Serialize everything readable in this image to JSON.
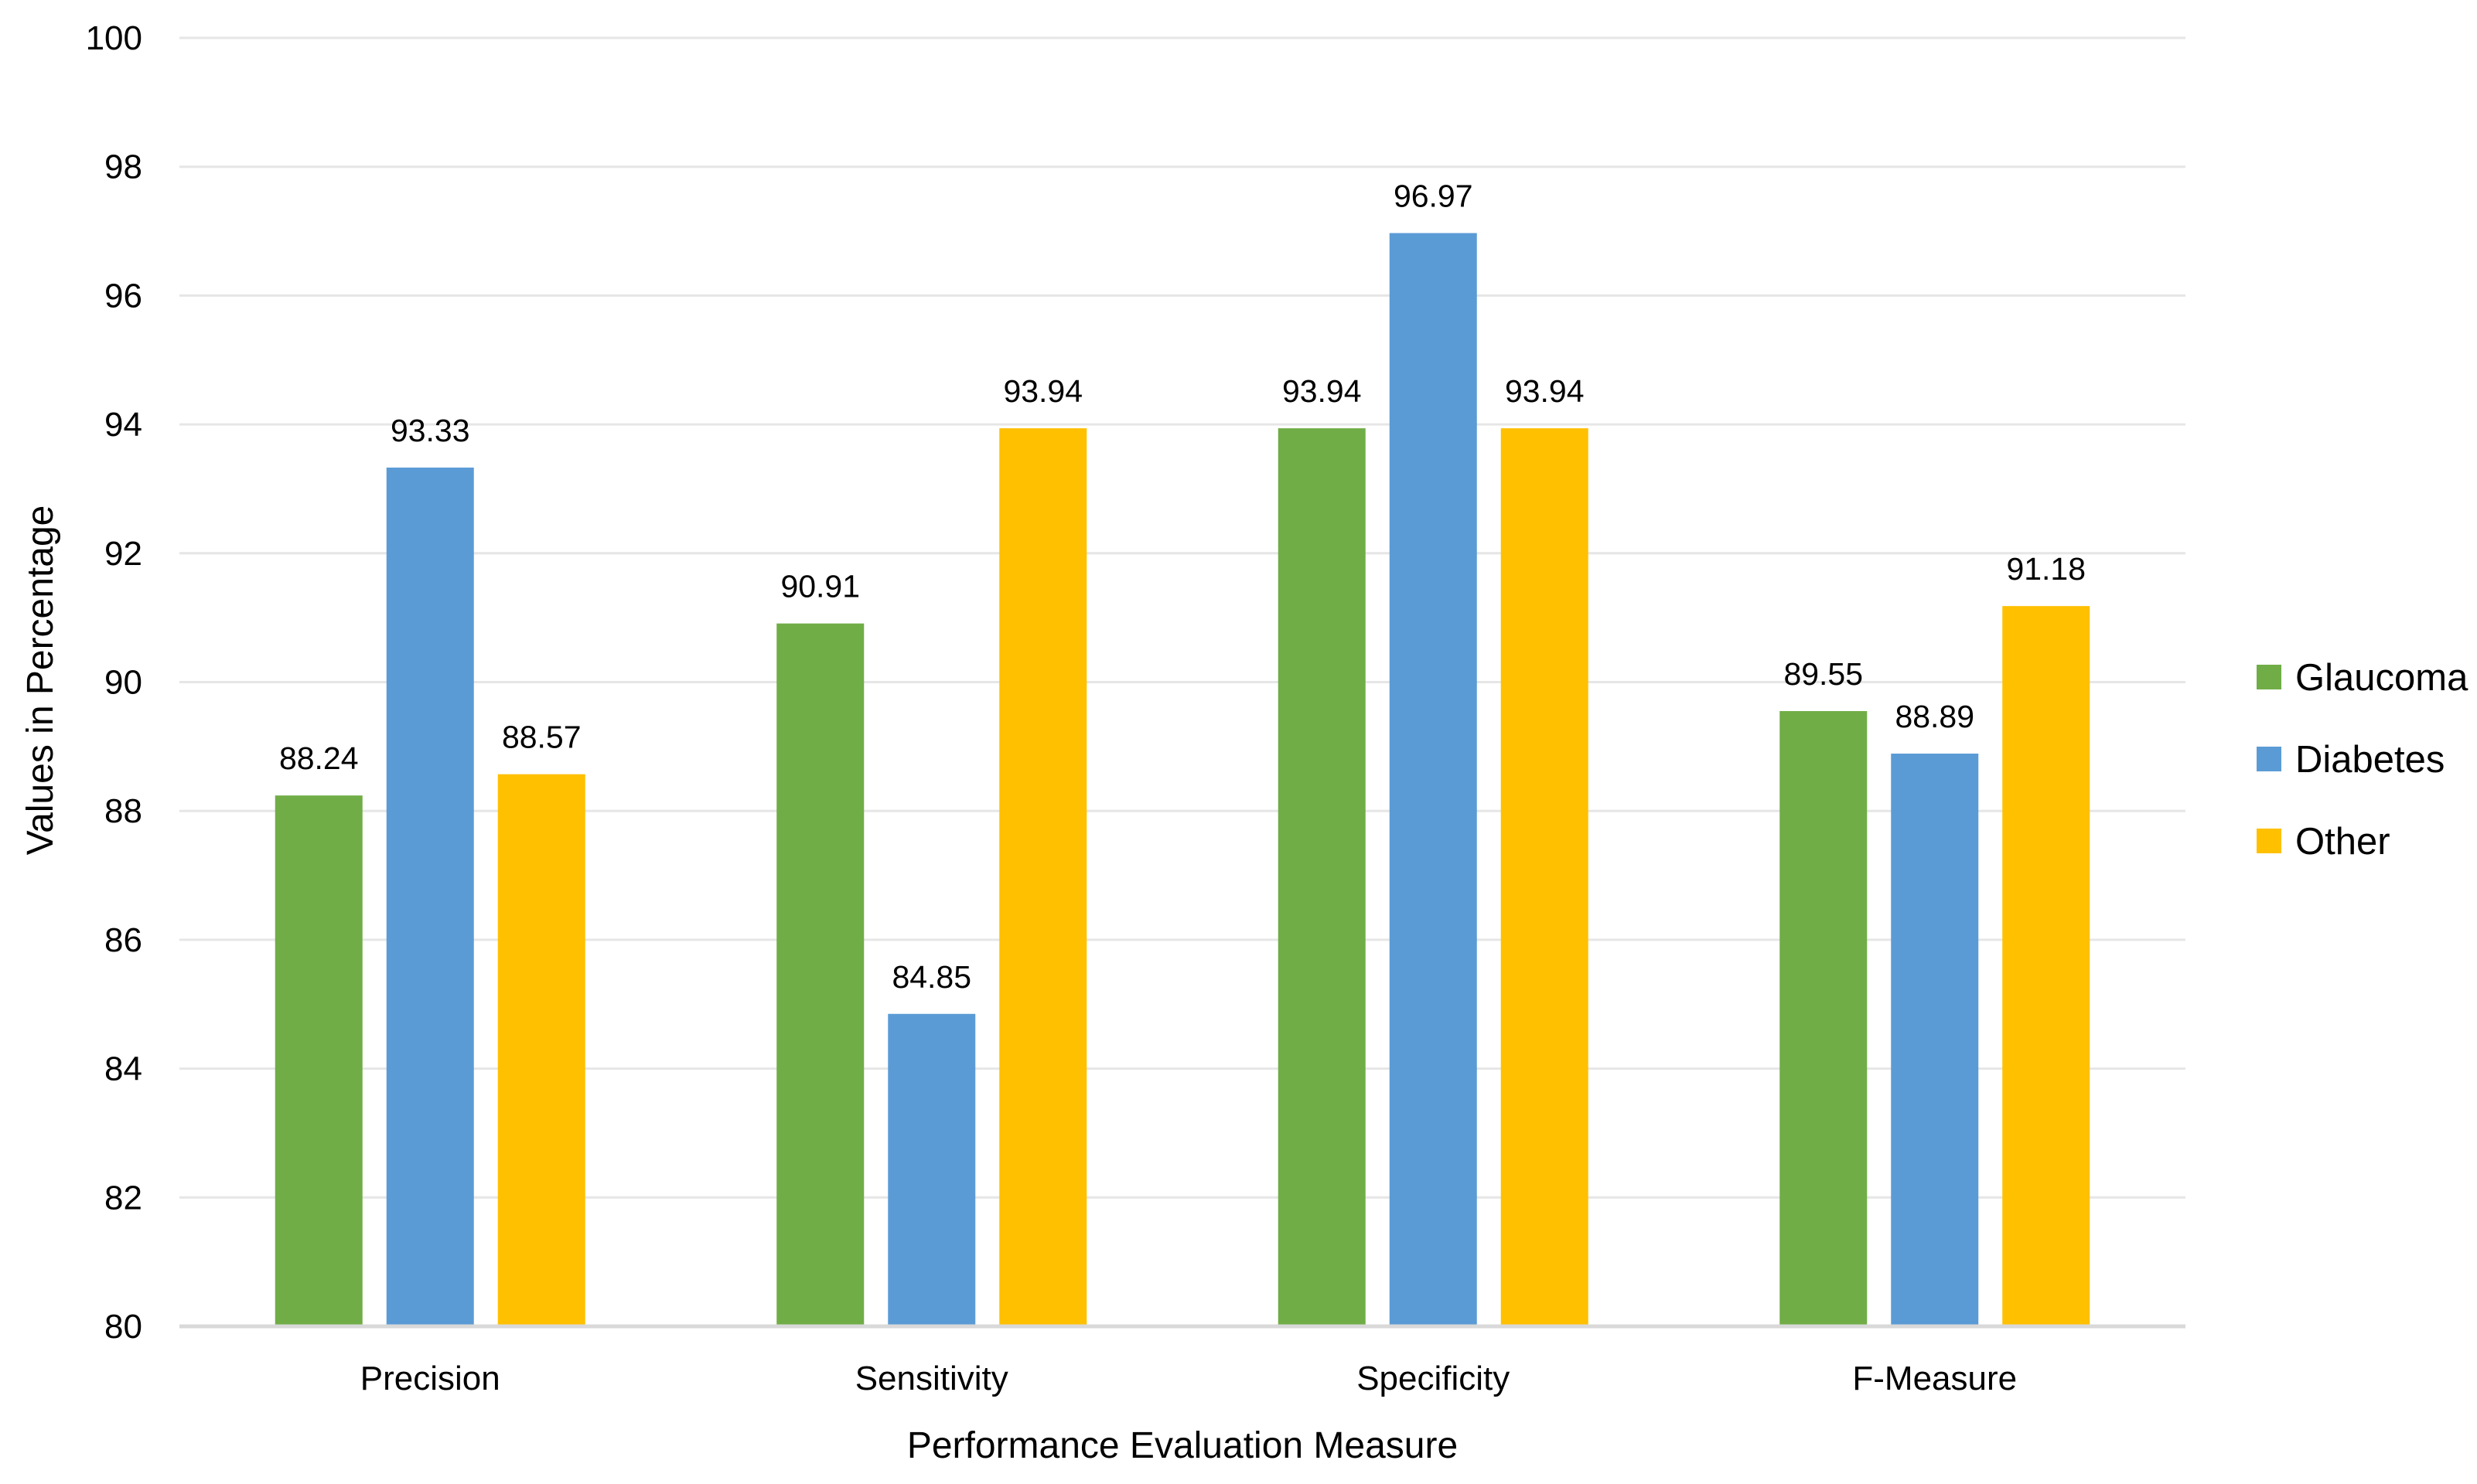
{
  "chart_data": {
    "type": "bar",
    "title": "",
    "xlabel": "Performance Evaluation Measure",
    "ylabel": "Values in Percentage",
    "ylim": [
      80,
      100
    ],
    "yticks": [
      "80",
      "82",
      "84",
      "86",
      "88",
      "90",
      "92",
      "94",
      "96",
      "98",
      "100"
    ],
    "grid": true,
    "legend_position": "right",
    "categories": [
      "Precision",
      "Sensitivity",
      "Specificity",
      "F-Measure"
    ],
    "series": [
      {
        "name": "Glaucoma",
        "color": "#70AD47",
        "values": [
          88.24,
          90.91,
          93.94,
          89.55
        ],
        "labels": [
          "88.24",
          "90.91",
          "93.94",
          "89.55"
        ]
      },
      {
        "name": "Diabetes",
        "color": "#5B9BD5",
        "values": [
          93.33,
          84.85,
          96.97,
          88.89
        ],
        "labels": [
          "93.33",
          "84.85",
          "96.97",
          "88.89"
        ]
      },
      {
        "name": "Other",
        "color": "#FFC000",
        "values": [
          88.57,
          93.94,
          93.94,
          91.18
        ],
        "labels": [
          "88.57",
          "93.94",
          "93.94",
          "91.18"
        ]
      }
    ]
  }
}
